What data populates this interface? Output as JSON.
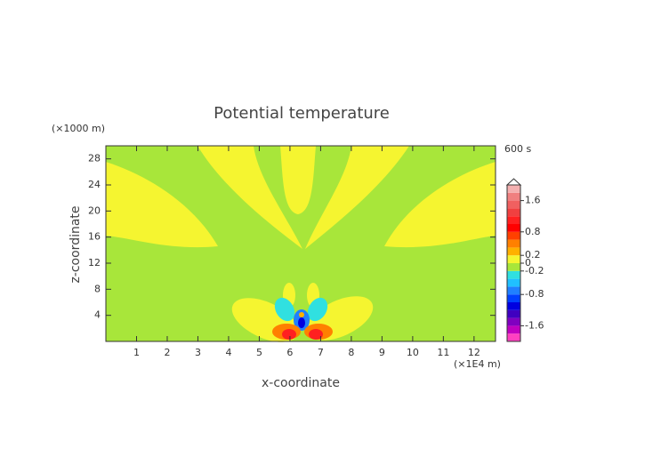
{
  "chart_data": {
    "type": "contour",
    "title": "Potential temperature",
    "x_label": "x-coordinate",
    "y_label": "z-coordinate",
    "x_unit": "(×1E4 m)",
    "y_unit": "(×1000 m)",
    "time_label": "600 s",
    "xlim": [
      0,
      12.7
    ],
    "xticks": [
      1,
      2,
      3,
      4,
      5,
      6,
      7,
      8,
      9,
      10,
      11,
      12
    ],
    "ylim": [
      0,
      30
    ],
    "yticks": [
      4,
      8,
      12,
      16,
      20,
      24,
      28
    ],
    "colorbar": {
      "lim": [
        -2,
        2
      ],
      "ticks": [
        1.6,
        0.8,
        0.2,
        0,
        -0.2,
        -0.8,
        -1.6
      ],
      "levels": [
        -2,
        -1.8,
        -1.6,
        -1.4,
        -1.2,
        -1,
        -0.8,
        -0.6,
        -0.4,
        -0.2,
        0,
        0.2,
        0.4,
        0.6,
        0.8,
        1,
        1.2,
        1.4,
        1.6,
        1.8,
        2
      ],
      "colors": [
        "#ff40c0",
        "#c000c0",
        "#8000c0",
        "#4000c0",
        "#0000e0",
        "#0040ff",
        "#2080ff",
        "#20c0ff",
        "#30e0e0",
        "#a8e63a",
        "#f5f530",
        "#ffb000",
        "#ff8000",
        "#ff4000",
        "#ff0000",
        "#ff2020",
        "#f04040",
        "#f06060",
        "#f08080",
        "#f4b0b0"
      ]
    }
  }
}
